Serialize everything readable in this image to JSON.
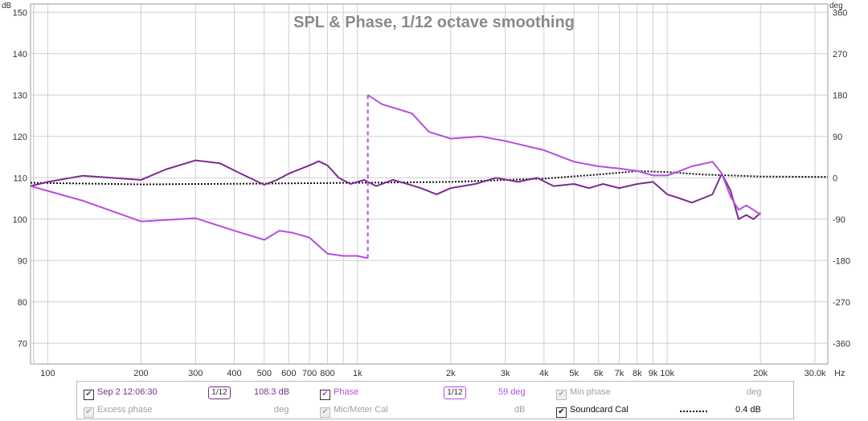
{
  "chart_data": {
    "type": "line",
    "title": "SPL & Phase, 1/12 octave smoothing",
    "left_axis": {
      "unit": "dB",
      "ylim": [
        65,
        152
      ],
      "ticks": [
        70,
        80,
        90,
        100,
        110,
        120,
        130,
        140,
        150
      ]
    },
    "right_axis": {
      "unit": "deg",
      "ylim": [
        -405,
        378
      ],
      "ticks": [
        -360,
        -270,
        -180,
        -90,
        0,
        90,
        180,
        270,
        360
      ]
    },
    "x_axis": {
      "scale": "log",
      "xlim": [
        88,
        33000
      ],
      "unit": "Hz",
      "tick_labels": [
        "100",
        "200",
        "300",
        "400",
        "500",
        "600",
        "700",
        "800",
        "1k",
        "2k",
        "3k",
        "4k",
        "5k",
        "6k",
        "7k",
        "8k",
        "9k",
        "10k",
        "20k",
        "30.0k"
      ],
      "tick_values": [
        100,
        200,
        300,
        400,
        500,
        600,
        700,
        800,
        1000,
        2000,
        3000,
        4000,
        5000,
        6000,
        7000,
        8000,
        9000,
        10000,
        20000,
        30000
      ]
    },
    "grid": true,
    "series": [
      {
        "name": "Sep 2 12:06:30",
        "axis": "left",
        "color": "#7b2d8e",
        "points": [
          [
            88,
            108
          ],
          [
            100,
            109
          ],
          [
            130,
            110.5
          ],
          [
            160,
            110
          ],
          [
            200,
            109.5
          ],
          [
            240,
            112
          ],
          [
            300,
            114.2
          ],
          [
            360,
            113.5
          ],
          [
            420,
            111
          ],
          [
            500,
            108.3
          ],
          [
            550,
            109.5
          ],
          [
            600,
            111
          ],
          [
            700,
            113
          ],
          [
            750,
            114
          ],
          [
            800,
            113
          ],
          [
            870,
            110
          ],
          [
            950,
            108.5
          ],
          [
            1050,
            109.5
          ],
          [
            1150,
            108
          ],
          [
            1300,
            109.5
          ],
          [
            1450,
            108.5
          ],
          [
            1600,
            107.5
          ],
          [
            1800,
            106
          ],
          [
            2000,
            107.5
          ],
          [
            2400,
            108.5
          ],
          [
            2800,
            110
          ],
          [
            3300,
            109
          ],
          [
            3800,
            110
          ],
          [
            4300,
            108
          ],
          [
            5000,
            108.5
          ],
          [
            5600,
            107.5
          ],
          [
            6200,
            108.5
          ],
          [
            7000,
            107.5
          ],
          [
            8000,
            108.5
          ],
          [
            9000,
            109
          ],
          [
            10000,
            106
          ],
          [
            11000,
            105
          ],
          [
            12000,
            104
          ],
          [
            13000,
            105
          ],
          [
            14000,
            106
          ],
          [
            15000,
            111
          ],
          [
            16000,
            107
          ],
          [
            17000,
            100
          ],
          [
            18000,
            101
          ],
          [
            19000,
            100
          ],
          [
            20000,
            101.5
          ]
        ]
      },
      {
        "name": "Phase",
        "axis": "right",
        "color": "#b34fe0",
        "points": [
          [
            88,
            -18
          ],
          [
            130,
            -50
          ],
          [
            200,
            -95
          ],
          [
            300,
            -88
          ],
          [
            400,
            -115
          ],
          [
            500,
            -135
          ],
          [
            560,
            -115
          ],
          [
            620,
            -120
          ],
          [
            700,
            -130
          ],
          [
            800,
            -165
          ],
          [
            900,
            -170
          ],
          [
            1000,
            -170
          ],
          [
            1080,
            -175
          ],
          [
            1080,
            180
          ],
          [
            1200,
            160
          ],
          [
            1500,
            140
          ],
          [
            1700,
            100
          ],
          [
            1900,
            90
          ],
          [
            2000,
            85
          ],
          [
            2500,
            90
          ],
          [
            3000,
            80
          ],
          [
            4000,
            60
          ],
          [
            5000,
            35
          ],
          [
            6000,
            25
          ],
          [
            7000,
            20
          ],
          [
            8000,
            15
          ],
          [
            9000,
            5
          ],
          [
            10000,
            5
          ],
          [
            11000,
            15
          ],
          [
            12000,
            25
          ],
          [
            13000,
            30
          ],
          [
            14000,
            35
          ],
          [
            15000,
            10
          ],
          [
            16000,
            -40
          ],
          [
            17000,
            -70
          ],
          [
            18000,
            -60
          ],
          [
            19000,
            -70
          ],
          [
            20000,
            -80
          ]
        ]
      },
      {
        "name": "Soundcard Cal",
        "axis": "left",
        "color": "#111111",
        "dash": "dotted",
        "points": [
          [
            88,
            108.8
          ],
          [
            200,
            108.4
          ],
          [
            500,
            108.6
          ],
          [
            1000,
            108.8
          ],
          [
            2000,
            109
          ],
          [
            4000,
            109.8
          ],
          [
            6000,
            110.8
          ],
          [
            8000,
            111.6
          ],
          [
            10000,
            111.4
          ],
          [
            13000,
            110.8
          ],
          [
            20000,
            110.3
          ],
          [
            33000,
            110.2
          ]
        ]
      }
    ]
  },
  "legend": {
    "row1": [
      {
        "label": "Sep 2 12:06:30",
        "smoothing": "1/12",
        "value": "108.3 dB"
      },
      {
        "label": "Phase",
        "smoothing": "1/12",
        "value": "59 deg"
      },
      {
        "label": "Min phase",
        "value": "deg"
      }
    ],
    "row2": [
      {
        "label": "Excess phase",
        "value": "deg"
      },
      {
        "label": "Mic/Meter Cal",
        "value": "dB"
      },
      {
        "label": "Soundcard Cal",
        "value": "0.4 dB"
      }
    ]
  },
  "colors": {
    "spl": "#7b2d8e",
    "phase": "#b34fe0",
    "disabled_text": "#a0a0a0",
    "grid": "#cfcfcf",
    "title": "#8a8a8a"
  }
}
